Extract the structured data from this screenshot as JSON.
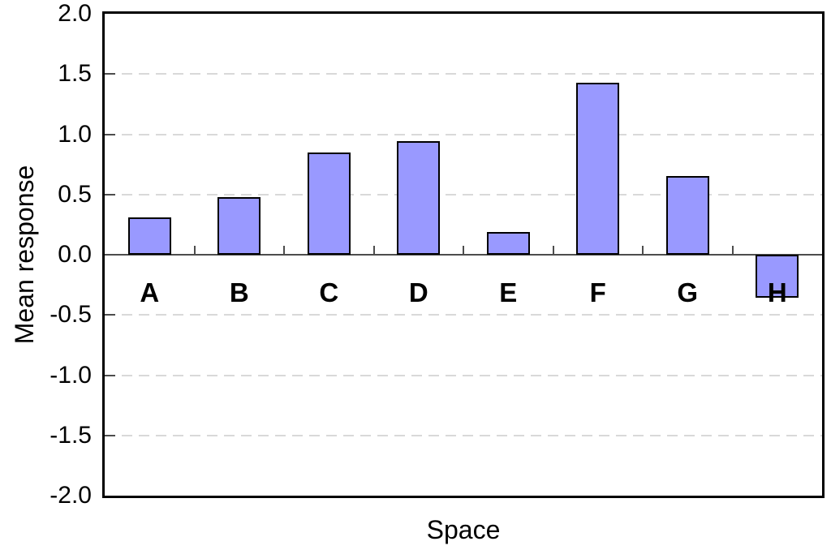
{
  "chart_data": {
    "type": "bar",
    "title": "",
    "xlabel": "Space",
    "ylabel": "Mean response",
    "categories": [
      "A",
      "B",
      "C",
      "D",
      "E",
      "F",
      "G",
      "H"
    ],
    "values": [
      0.31,
      0.48,
      0.85,
      0.94,
      0.19,
      1.43,
      0.65,
      -0.36
    ],
    "ylim": [
      -2.0,
      2.0
    ],
    "ytick_step": 0.5,
    "yticks": [
      {
        "value": 2.0,
        "label": "2.0"
      },
      {
        "value": 1.5,
        "label": "1.5"
      },
      {
        "value": 1.0,
        "label": "1.0"
      },
      {
        "value": 0.5,
        "label": "0.5"
      },
      {
        "value": 0.0,
        "label": "0.0"
      },
      {
        "value": -0.5,
        "label": "-0.5"
      },
      {
        "value": -1.0,
        "label": "-1.0"
      },
      {
        "value": -1.5,
        "label": "-1.5"
      },
      {
        "value": -2.0,
        "label": "-2.0"
      }
    ],
    "grid": "horizontal dashed lines at 0.5 intervals, none at 0 or limits",
    "legend": "none",
    "colors": {
      "bar_fill": "#9999FF",
      "bar_border": "#000000",
      "gridline": "#D9D9D9",
      "zero_axis": "#4D4D4D",
      "plot_border": "#000000",
      "text": "#000000",
      "background": "#FFFFFF"
    }
  }
}
